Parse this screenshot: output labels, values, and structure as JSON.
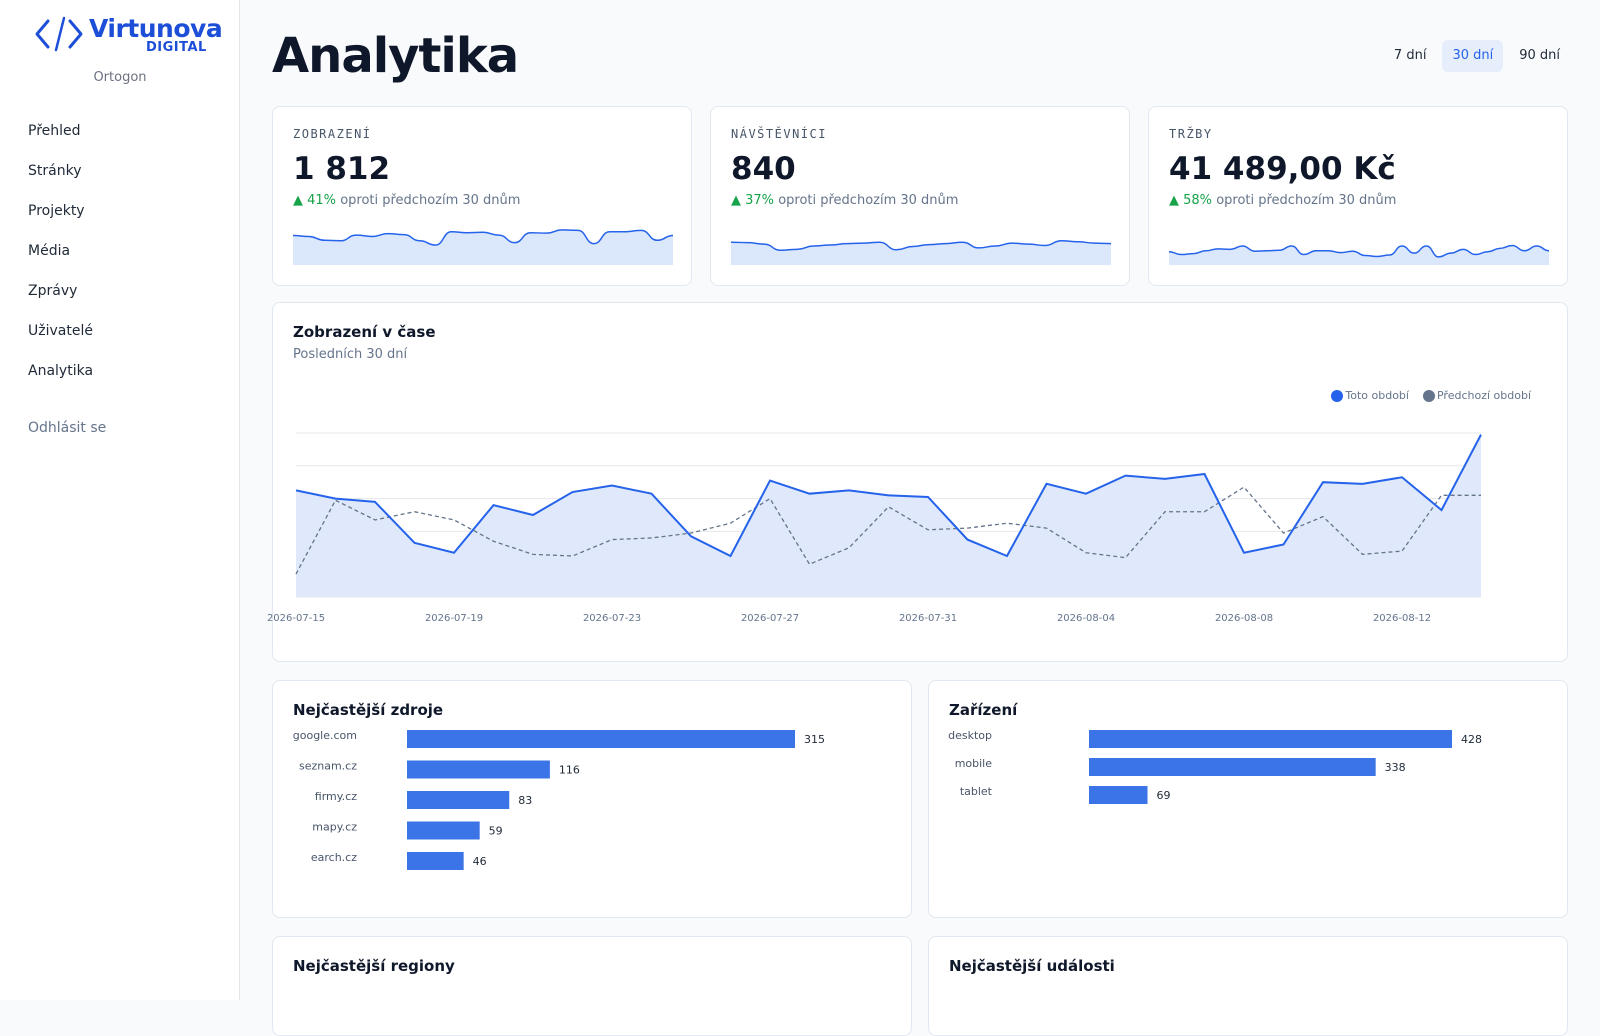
{
  "brand": {
    "name": "Virtunova",
    "sub": "DIGITAL",
    "org": "Ortogon",
    "accent": "#1d4ed8"
  },
  "sidebar": {
    "items": [
      {
        "label": "Přehled"
      },
      {
        "label": "Stránky"
      },
      {
        "label": "Projekty"
      },
      {
        "label": "Média"
      },
      {
        "label": "Zprávy"
      },
      {
        "label": "Uživatelé"
      },
      {
        "label": "Analytika"
      }
    ],
    "logout": "Odhlásit se"
  },
  "header": {
    "title": "Analytika",
    "ranges": [
      {
        "label": "7 dní",
        "active": false
      },
      {
        "label": "30 dní",
        "active": true
      },
      {
        "label": "90 dní",
        "active": false
      }
    ]
  },
  "stats": [
    {
      "label": "ZOBRAZENÍ",
      "value": "1 812",
      "delta": "41%",
      "rest": "oproti předchozím 30 dnům",
      "up_icon": "triangle-up-icon"
    },
    {
      "label": "NÁVŠTĚVNÍCI",
      "value": "840",
      "delta": "37%",
      "rest": "oproti předchozím 30 dnům",
      "up_icon": "triangle-up-icon"
    },
    {
      "label": "TRŽBY",
      "value": "41 489,00 Kč",
      "delta": "58%",
      "rest": "oproti předchozím 30 dnům",
      "up_icon": "triangle-up-icon"
    }
  ],
  "sparks": [
    [
      62,
      60,
      52,
      51,
      63,
      60,
      66,
      64,
      51,
      42,
      70,
      68,
      69,
      63,
      47,
      68,
      67,
      74,
      73,
      45,
      70,
      70,
      73,
      52,
      62
    ],
    [
      48,
      47,
      44,
      31,
      33,
      40,
      42,
      45,
      46,
      48,
      32,
      39,
      43,
      45,
      48,
      36,
      40,
      46,
      44,
      41,
      51,
      49,
      46,
      45
    ],
    [
      28,
      22,
      24,
      30,
      34,
      33,
      40,
      29,
      30,
      31,
      40,
      22,
      30,
      30,
      26,
      29,
      20,
      18,
      21,
      40,
      25,
      40,
      17,
      25,
      33,
      22,
      28,
      35,
      41,
      30,
      40,
      30
    ]
  ],
  "chart_data": {
    "type": "line",
    "title": "Zobrazení v čase",
    "subtitle": "Posledních 30 dní",
    "x_ticks": [
      "2026-07-15",
      "2026-07-19",
      "2026-07-23",
      "2026-07-27",
      "2026-07-31",
      "2026-08-04",
      "2026-08-08",
      "2026-08-12"
    ],
    "series": [
      {
        "name": "Toto období",
        "color": "#2563eb",
        "values": [
          65,
          60,
          58,
          33,
          27,
          56,
          50,
          64,
          68,
          63,
          37,
          25,
          71,
          63,
          65,
          62,
          61,
          35,
          25,
          69,
          63,
          74,
          72,
          75,
          27,
          32,
          70,
          69,
          73,
          53,
          99
        ]
      },
      {
        "name": "Předchozí období",
        "color": "#64748b",
        "values": [
          14,
          59,
          47,
          52,
          47,
          34,
          26,
          25,
          35,
          36,
          39,
          45,
          60,
          20,
          30,
          55,
          41,
          42,
          45,
          42,
          27,
          24,
          52,
          52,
          67,
          39,
          49,
          26,
          28,
          62,
          62
        ]
      }
    ],
    "ylim": [
      0,
      100
    ],
    "grid": true,
    "legend": "top-right"
  },
  "sources": {
    "title": "Nejčastější zdroje",
    "items": [
      {
        "label": "google.com",
        "value": 315
      },
      {
        "label": "seznam.cz",
        "value": 116
      },
      {
        "label": "firmy.cz",
        "value": 83
      },
      {
        "label": "mapy.cz",
        "value": 59
      },
      {
        "label": "earch.cz",
        "value": 46
      }
    ]
  },
  "devices": {
    "title": "Zařízení",
    "items": [
      {
        "label": "desktop",
        "value": 428
      },
      {
        "label": "mobile",
        "value": 338
      },
      {
        "label": "tablet",
        "value": 69
      }
    ]
  },
  "regions": {
    "title": "Nejčastější regiony"
  },
  "events": {
    "title": "Nejčastější události"
  },
  "colors": {
    "bar": "#3b74e6",
    "positive": "#16a34a",
    "line": "#2563eb",
    "fill": "#dbe7fb"
  }
}
